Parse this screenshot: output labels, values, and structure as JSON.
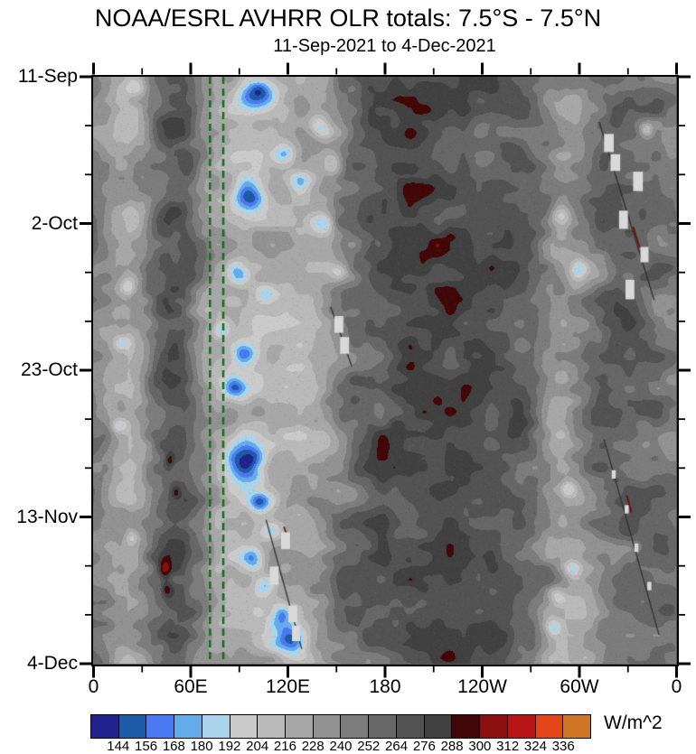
{
  "title": "NOAA/ESRL AVHRR OLR totals: 7.5°S - 7.5°N",
  "subtitle": "11-Sep-2021 to 4-Dec-2021",
  "chart_data": {
    "type": "heatmap",
    "subtype": "hovmoller-longitude-time",
    "title": "NOAA/ESRL AVHRR OLR totals: 7.5°S - 7.5°N",
    "subtitle": "11-Sep-2021 to 4-Dec-2021",
    "x_axis": {
      "label": "",
      "range_deg": [
        0,
        360
      ],
      "minor_tick_step_deg": 30,
      "major_tick_step_deg": 60,
      "ticks": [
        {
          "label": "0",
          "lon": 0
        },
        {
          "label": "60E",
          "lon": 60
        },
        {
          "label": "120E",
          "lon": 120
        },
        {
          "label": "180",
          "lon": 180
        },
        {
          "label": "120W",
          "lon": 240
        },
        {
          "label": "60W",
          "lon": 300
        },
        {
          "label": "0",
          "lon": 360
        }
      ]
    },
    "y_axis": {
      "label": "",
      "start_date": "11-Sep-2021",
      "end_date": "4-Dec-2021",
      "range_days": [
        0,
        84
      ],
      "minor_tick_step_days": 7,
      "major_tick_step_days": 21,
      "ticks": [
        {
          "label": "11-Sep",
          "day": 0
        },
        {
          "label": "2-Oct",
          "day": 21
        },
        {
          "label": "23-Oct",
          "day": 42
        },
        {
          "label": "13-Nov",
          "day": 63
        },
        {
          "label": "4-Dec",
          "day": 84
        }
      ]
    },
    "colorbar": {
      "unit": "W/m^2",
      "levels": [
        144,
        156,
        168,
        180,
        192,
        204,
        216,
        228,
        240,
        252,
        264,
        276,
        288,
        300,
        312,
        324,
        336
      ],
      "colors": [
        "#22228e",
        "#1c5ba5",
        "#4b79f2",
        "#63ace9",
        "#aad4eb",
        "#cacaca",
        "#b9b9b9",
        "#a7a7a7",
        "#929292",
        "#7c7c7c",
        "#676767",
        "#535353",
        "#414141",
        "#420707",
        "#8c1010",
        "#b81616",
        "#e4461b",
        "#d07526"
      ]
    },
    "ref_lines": {
      "lons": [
        72.3,
        80.5
      ],
      "color": "#176e17",
      "style": "dashed",
      "dash": [
        8,
        5
      ],
      "width": 2.5
    },
    "field_model": {
      "missing_color": "#d9d9d9",
      "base_profile": [
        [
          0,
          246
        ],
        [
          8,
          238
        ],
        [
          14,
          226
        ],
        [
          22,
          221
        ],
        [
          30,
          234
        ],
        [
          38,
          258
        ],
        [
          47,
          273
        ],
        [
          56,
          271
        ],
        [
          64,
          252
        ],
        [
          70,
          238
        ],
        [
          76,
          228
        ],
        [
          84,
          221
        ],
        [
          92,
          217
        ],
        [
          100,
          217
        ],
        [
          108,
          219
        ],
        [
          116,
          221
        ],
        [
          124,
          224
        ],
        [
          132,
          228
        ],
        [
          140,
          233
        ],
        [
          148,
          241
        ],
        [
          156,
          251
        ],
        [
          164,
          259
        ],
        [
          172,
          266
        ],
        [
          180,
          271
        ],
        [
          190,
          275
        ],
        [
          200,
          277
        ],
        [
          212,
          276
        ],
        [
          224,
          273
        ],
        [
          236,
          272
        ],
        [
          248,
          270
        ],
        [
          258,
          267
        ],
        [
          268,
          260
        ],
        [
          276,
          248
        ],
        [
          284,
          236
        ],
        [
          292,
          230
        ],
        [
          300,
          233
        ],
        [
          308,
          245
        ],
        [
          316,
          255
        ],
        [
          324,
          260
        ],
        [
          332,
          259
        ],
        [
          340,
          256
        ],
        [
          350,
          251
        ],
        [
          360,
          246
        ]
      ],
      "noise_octaves": [
        {
          "dlon": 22,
          "dday": 4.0,
          "amp": 16,
          "seed": 11
        },
        {
          "dlon": 8.5,
          "dday": 1.6,
          "amp": 9,
          "seed": 29
        },
        {
          "dlon": 45,
          "dday": 9.0,
          "amp": 8,
          "seed": 47
        }
      ],
      "anomalies": [
        {
          "lon": 102,
          "day": 2.5,
          "rlon": 8,
          "rday": 1.5,
          "amp": -75
        },
        {
          "lon": 26,
          "day": 1.5,
          "rlon": 4,
          "rday": 0.9,
          "amp": -35
        },
        {
          "lon": 140,
          "day": 7,
          "rlon": 5,
          "rday": 1.2,
          "amp": -45
        },
        {
          "lon": 342,
          "day": 7.5,
          "rlon": 3,
          "rday": 0.7,
          "amp": -38
        },
        {
          "lon": 118,
          "day": 11,
          "rlon": 5,
          "rday": 1.1,
          "amp": -40
        },
        {
          "lon": 148,
          "day": 12.5,
          "rlon": 5,
          "rday": 1.3,
          "amp": -48
        },
        {
          "lon": 128,
          "day": 15,
          "rlon": 4.5,
          "rday": 1.1,
          "amp": -38
        },
        {
          "lon": 96,
          "day": 17,
          "rlon": 7,
          "rday": 1.7,
          "amp": -78
        },
        {
          "lon": 142,
          "day": 21,
          "rlon": 4.5,
          "rday": 1.1,
          "amp": -42
        },
        {
          "lon": 289,
          "day": 20,
          "rlon": 4.5,
          "rday": 1.1,
          "amp": -45
        },
        {
          "lon": 152,
          "day": 28,
          "rlon": 4,
          "rday": 0.9,
          "amp": -32
        },
        {
          "lon": 90,
          "day": 28,
          "rlon": 4.5,
          "rday": 1.1,
          "amp": -40
        },
        {
          "lon": 300,
          "day": 27.5,
          "rlon": 3.5,
          "rday": 0.9,
          "amp": -36
        },
        {
          "lon": 21,
          "day": 30,
          "rlon": 3.5,
          "rday": 0.9,
          "amp": -34
        },
        {
          "lon": 108,
          "day": 31,
          "rlon": 4.5,
          "rday": 1.0,
          "amp": -36
        },
        {
          "lon": 80,
          "day": 36,
          "rlon": 3.5,
          "rday": 0.9,
          "amp": -36
        },
        {
          "lon": 18,
          "day": 38,
          "rlon": 3.5,
          "rday": 0.8,
          "amp": -30
        },
        {
          "lon": 93,
          "day": 39.5,
          "rlon": 5.5,
          "rday": 1.2,
          "amp": -52
        },
        {
          "lon": 88,
          "day": 44.5,
          "rlon": 5,
          "rday": 1.1,
          "amp": -44
        },
        {
          "lon": 16,
          "day": 50,
          "rlon": 3.5,
          "rday": 0.8,
          "amp": -34
        },
        {
          "lon": 95,
          "day": 55,
          "rlon": 8,
          "rday": 2.0,
          "amp": -85
        },
        {
          "lon": 103,
          "day": 61,
          "rlon": 4.5,
          "rday": 1.1,
          "amp": -50
        },
        {
          "lon": 294,
          "day": 59,
          "rlon": 3.5,
          "rday": 0.9,
          "amp": -35
        },
        {
          "lon": 110,
          "day": 65,
          "rlon": 4.5,
          "rday": 1.0,
          "amp": -40
        },
        {
          "lon": 24,
          "day": 66,
          "rlon": 3,
          "rday": 0.8,
          "amp": -28
        },
        {
          "lon": 99,
          "day": 69,
          "rlon": 4.5,
          "rday": 1.1,
          "amp": -48
        },
        {
          "lon": 296,
          "day": 70.5,
          "rlon": 3.5,
          "rday": 0.9,
          "amp": -36
        },
        {
          "lon": 107,
          "day": 73,
          "rlon": 4.5,
          "rday": 1.0,
          "amp": -44
        },
        {
          "lon": 287,
          "day": 74,
          "rlon": 4,
          "rday": 0.9,
          "amp": -38
        },
        {
          "lon": 116,
          "day": 77,
          "rlon": 4.5,
          "rday": 1.1,
          "amp": -45
        },
        {
          "lon": 122,
          "day": 80.5,
          "rlon": 7,
          "rday": 1.6,
          "amp": -70
        },
        {
          "lon": 285,
          "day": 79,
          "rlon": 3.5,
          "rday": 0.9,
          "amp": -36
        },
        {
          "lon": 47,
          "day": 55,
          "rlon": 2.2,
          "rday": 0.8,
          "amp": 30
        },
        {
          "lon": 51,
          "day": 59.5,
          "rlon": 2.2,
          "rday": 0.8,
          "amp": 26
        },
        {
          "lon": 44,
          "day": 70.5,
          "rlon": 2.6,
          "rday": 1.1,
          "amp": 36
        },
        {
          "lon": 45,
          "day": 73.5,
          "rlon": 2.2,
          "rday": 0.8,
          "amp": 30
        }
      ],
      "missing_patches": [
        {
          "lon": 319,
          "day": 9.5,
          "wlon": 6,
          "wday": 2.6
        },
        {
          "lon": 323,
          "day": 12.3,
          "wlon": 6,
          "wday": 2.4
        },
        {
          "lon": 337,
          "day": 15,
          "wlon": 6,
          "wday": 2.8
        },
        {
          "lon": 328,
          "day": 20.5,
          "wlon": 5.5,
          "wday": 2.6
        },
        {
          "lon": 341,
          "day": 25.5,
          "wlon": 5,
          "wday": 2.2
        },
        {
          "lon": 332,
          "day": 30.5,
          "wlon": 5.5,
          "wday": 2.8
        },
        {
          "lon": 152,
          "day": 35.5,
          "wlon": 5.5,
          "wday": 2.4
        },
        {
          "lon": 155.5,
          "day": 38.5,
          "wlon": 5.5,
          "wday": 2.4
        },
        {
          "lon": 119,
          "day": 66.5,
          "wlon": 5.5,
          "wday": 2.4
        },
        {
          "lon": 112,
          "day": 71.5,
          "wlon": 5.5,
          "wday": 2.6
        },
        {
          "lon": 123.5,
          "day": 77,
          "wlon": 5.5,
          "wday": 2.4
        },
        {
          "lon": 125.5,
          "day": 79.8,
          "wlon": 5,
          "wday": 2.2
        },
        {
          "lon": 322,
          "day": 57,
          "wlon": 2.5,
          "wday": 1.2
        },
        {
          "lon": 330,
          "day": 62,
          "wlon": 2.5,
          "wday": 1.2
        },
        {
          "lon": 336,
          "day": 67.5,
          "wlon": 2.5,
          "wday": 1.2
        },
        {
          "lon": 344,
          "day": 73,
          "wlon": 2.5,
          "wday": 1.2
        }
      ],
      "streaks": [
        {
          "lon1": 313,
          "day1": 6.5,
          "lon2": 347,
          "day2": 32,
          "color": "#2e2e2e",
          "width": 1.5
        },
        {
          "lon1": 147,
          "day1": 33,
          "lon2": 160,
          "day2": 41.5,
          "color": "#2e2e2e",
          "width": 1.5
        },
        {
          "lon1": 107,
          "day1": 63.5,
          "lon2": 129,
          "day2": 82,
          "color": "#2e2e2e",
          "width": 1.5
        },
        {
          "lon1": 316,
          "day1": 52,
          "lon2": 350,
          "day2": 80,
          "color": "#303030",
          "width": 1.5
        },
        {
          "lon1": 334,
          "day1": 21.5,
          "lon2": 338,
          "day2": 24.5,
          "color": "#6b0b0b",
          "width": 2
        },
        {
          "lon1": 118,
          "day1": 64.5,
          "lon2": 121,
          "day2": 66.5,
          "color": "#6b0b0b",
          "width": 2
        },
        {
          "lon1": 330,
          "day1": 60,
          "lon2": 333,
          "day2": 62.5,
          "color": "#6b0b0b",
          "width": 2
        }
      ]
    }
  }
}
